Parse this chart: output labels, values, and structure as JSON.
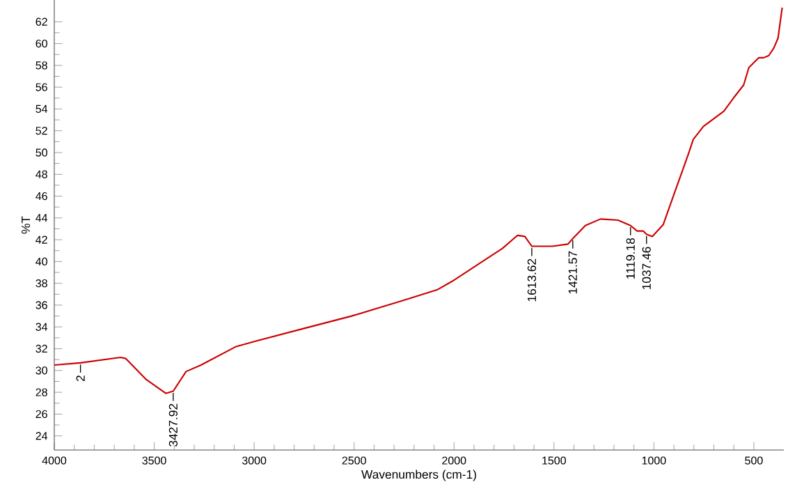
{
  "chart_data": {
    "type": "line",
    "xlabel": "Wavenumbers (cm-1)",
    "ylabel": "%T",
    "xlim": [
      4000,
      350
    ],
    "ylim": [
      22.7,
      64
    ],
    "xticks": [
      4000,
      3500,
      3000,
      2500,
      2000,
      1500,
      1000,
      500
    ],
    "yticks": [
      24,
      26,
      28,
      30,
      32,
      34,
      36,
      38,
      40,
      42,
      44,
      46,
      48,
      50,
      52,
      54,
      56,
      58,
      60,
      62
    ],
    "grid": false,
    "marker": "none",
    "line_style": "solid",
    "series": [
      {
        "color": "#cc0000",
        "x": [
          4000,
          3869,
          3669,
          3643,
          3542,
          3442,
          3405,
          3341,
          3266,
          3090,
          2990,
          2763,
          2512,
          2260,
          2085,
          2008,
          1858,
          1758,
          1695,
          1682,
          1646,
          1611,
          1507,
          1430,
          1406,
          1343,
          1267,
          1180,
          1117,
          1084,
          1054,
          1037,
          1008,
          953,
          903,
          852,
          827,
          803,
          752,
          650,
          602,
          551,
          525,
          476,
          451,
          425,
          400,
          379,
          362,
          358
        ],
        "values": [
          30.5,
          30.7,
          31.2,
          31.1,
          29.2,
          27.9,
          28.1,
          29.9,
          30.5,
          32.2,
          32.7,
          33.8,
          35.0,
          36.4,
          37.4,
          38.2,
          40.0,
          41.2,
          42.2,
          42.4,
          42.3,
          41.4,
          41.4,
          41.6,
          42.1,
          43.3,
          43.9,
          43.8,
          43.3,
          42.8,
          42.8,
          42.5,
          42.3,
          43.4,
          46.0,
          48.6,
          49.9,
          51.2,
          52.4,
          53.8,
          55.0,
          56.2,
          57.8,
          58.7,
          58.7,
          58.9,
          59.6,
          60.5,
          62.8,
          63.3
        ]
      }
    ],
    "annotations": [
      {
        "text": "2",
        "x": 3869,
        "y": 30.7
      },
      {
        "text": "3427.92",
        "x": 3405,
        "y": 28.1
      },
      {
        "text": "1613.62",
        "x": 1611,
        "y": 41.4
      },
      {
        "text": "1421.57",
        "x": 1406,
        "y": 42.1
      },
      {
        "text": "1119.18",
        "x": 1117,
        "y": 43.3
      },
      {
        "text": "1037.46",
        "x": 1037,
        "y": 42.5
      }
    ]
  }
}
